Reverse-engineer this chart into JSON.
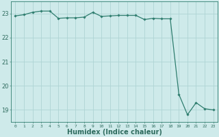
{
  "x": [
    0,
    1,
    2,
    3,
    4,
    5,
    6,
    7,
    8,
    9,
    10,
    11,
    12,
    13,
    14,
    15,
    16,
    17,
    18,
    19,
    20,
    21,
    22,
    23
  ],
  "y": [
    22.9,
    22.95,
    23.05,
    23.1,
    23.1,
    22.8,
    22.82,
    22.82,
    22.85,
    23.05,
    22.88,
    22.9,
    22.92,
    22.92,
    22.92,
    22.75,
    22.8,
    22.78,
    22.78,
    19.65,
    18.8,
    19.3,
    19.05,
    19.0
  ],
  "line_color": "#2e7d6e",
  "marker": "D",
  "marker_size": 1.8,
  "line_width": 0.9,
  "bg_color": "#ceeaea",
  "grid_color": "#aed4d4",
  "xlabel": "Humidex (Indice chaleur)",
  "xlabel_fontsize": 7,
  "xlabel_color": "#2e6b5e",
  "tick_color": "#2e6b5e",
  "ylim": [
    18.5,
    23.5
  ],
  "yticks": [
    19,
    20,
    21,
    22,
    23
  ],
  "xticks": [
    0,
    1,
    2,
    3,
    4,
    5,
    6,
    7,
    8,
    9,
    10,
    11,
    12,
    13,
    14,
    15,
    16,
    17,
    18,
    19,
    20,
    21,
    22,
    23
  ]
}
